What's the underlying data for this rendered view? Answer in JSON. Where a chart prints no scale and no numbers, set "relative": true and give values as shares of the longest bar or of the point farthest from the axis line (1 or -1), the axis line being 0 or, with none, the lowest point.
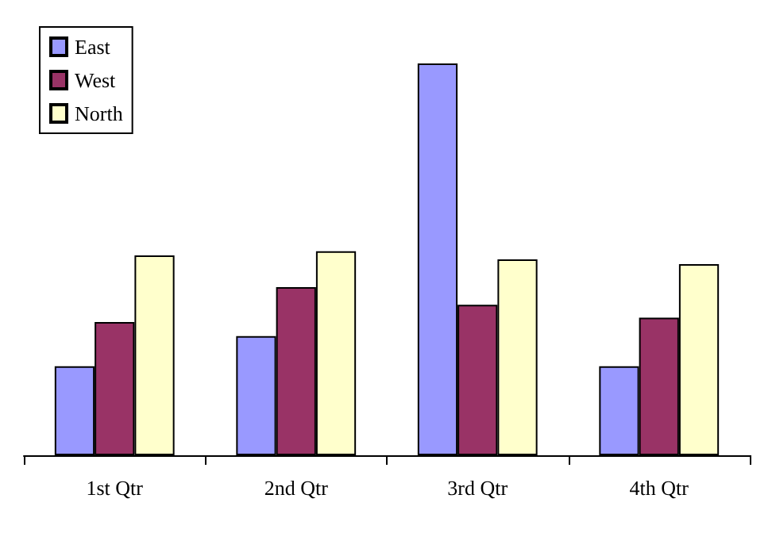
{
  "chart_data": {
    "type": "bar",
    "relative": true,
    "categories": [
      "1st Qtr",
      "2nd Qtr",
      "3rd Qtr",
      "4th Qtr"
    ],
    "series": [
      {
        "name": "East",
        "color": "#9999ff",
        "values": [
          0.227,
          0.304,
          1,
          0.227
        ]
      },
      {
        "name": "West",
        "color": "#993366",
        "values": [
          0.34,
          0.429,
          0.384,
          0.351
        ]
      },
      {
        "name": "North",
        "color": "#ffffcc",
        "values": [
          0.51,
          0.521,
          0.5,
          0.488
        ]
      }
    ],
    "legend": "top left"
  }
}
